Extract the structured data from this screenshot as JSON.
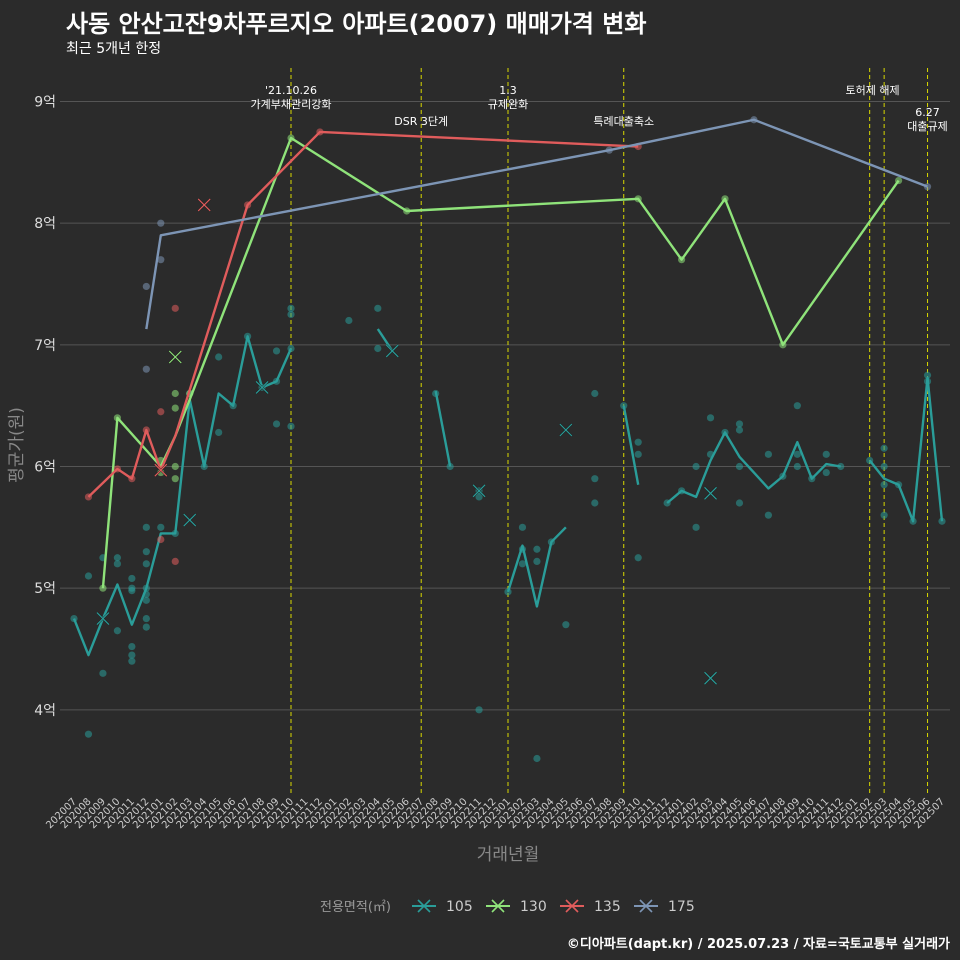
{
  "title": "사동 안산고잔9차푸르지오 아파트(2007) 매매가격 변화",
  "subtitle": "최근 5개년 한정",
  "caption": "©디아파트(dapt.kr) / 2025.07.23 / 자료=국토교통부 실거래가",
  "chart_data": {
    "type": "line",
    "xlabel": "거래년월",
    "ylabel": "평균가(원)",
    "ylim": [
      3.3,
      9.3
    ],
    "y_ticks": [
      {
        "value": 4,
        "label": "4억"
      },
      {
        "value": 5,
        "label": "5억"
      },
      {
        "value": 6,
        "label": "6억"
      },
      {
        "value": 7,
        "label": "7억"
      },
      {
        "value": 8,
        "label": "8억"
      },
      {
        "value": 9,
        "label": "9억"
      }
    ],
    "categories": [
      "202007",
      "202008",
      "202009",
      "202010",
      "202011",
      "202012",
      "202101",
      "202102",
      "202103",
      "202104",
      "202105",
      "202106",
      "202107",
      "202108",
      "202109",
      "202110",
      "202111",
      "202112",
      "202201",
      "202202",
      "202203",
      "202204",
      "202205",
      "202206",
      "202207",
      "202208",
      "202209",
      "202210",
      "202211",
      "202212",
      "202301",
      "202302",
      "202303",
      "202304",
      "202305",
      "202306",
      "202307",
      "202308",
      "202309",
      "202310",
      "202311",
      "202312",
      "202401",
      "202402",
      "202403",
      "202404",
      "202405",
      "202406",
      "202407",
      "202408",
      "202409",
      "202410",
      "202411",
      "202412",
      "202501",
      "202502",
      "202503",
      "202504",
      "202505",
      "202506",
      "202507"
    ],
    "legend_title": "전용면적(㎡)",
    "legend_position": "bottom",
    "series": [
      {
        "name": "105",
        "color": "#2a9d99",
        "line": [
          [
            "202007",
            4.75
          ],
          [
            "202008",
            4.45
          ],
          [
            "202009",
            4.75
          ],
          [
            "202010",
            5.03
          ],
          [
            "202011",
            4.7
          ],
          [
            "202012",
            5.0
          ],
          [
            "202101",
            5.45
          ],
          [
            "202102",
            5.45
          ],
          [
            "202103",
            6.55
          ],
          [
            "202104",
            6.0
          ],
          [
            "202105",
            6.6
          ],
          [
            "202106",
            6.5
          ],
          [
            "202107",
            7.07
          ],
          [
            "202108",
            6.65
          ],
          [
            "202109",
            6.7
          ],
          [
            "202110",
            6.97
          ],
          null,
          [
            "202204",
            7.13
          ],
          [
            "202205",
            6.95
          ],
          null,
          [
            "202208",
            6.62
          ],
          [
            "202209",
            6.0
          ],
          null,
          [
            "202301",
            4.97
          ],
          [
            "202302",
            5.35
          ],
          [
            "202303",
            4.85
          ],
          [
            "202304",
            5.38
          ],
          [
            "202305",
            5.5
          ],
          null,
          [
            "202309",
            6.5
          ],
          [
            "202310",
            5.85
          ],
          null,
          [
            "202312",
            5.7
          ],
          [
            "202401",
            5.8
          ],
          [
            "202402",
            5.75
          ],
          [
            "202403",
            6.05
          ],
          [
            "202404",
            6.28
          ],
          [
            "202405",
            6.08
          ],
          [
            "202406",
            5.95
          ],
          [
            "202407",
            5.82
          ],
          [
            "202408",
            5.92
          ],
          [
            "202409",
            6.2
          ],
          [
            "202410",
            5.9
          ],
          [
            "202411",
            6.02
          ],
          [
            "202412",
            6.0
          ],
          null,
          [
            "202502",
            6.05
          ],
          [
            "202503",
            5.9
          ],
          [
            "202504",
            5.85
          ],
          [
            "202505",
            5.55
          ],
          [
            "202506",
            6.73
          ],
          [
            "202507",
            5.55
          ]
        ],
        "points": [
          [
            "202007",
            4.75
          ],
          [
            "202008",
            5.1
          ],
          [
            "202008",
            3.8
          ],
          [
            "202009",
            5.25
          ],
          [
            "202009",
            4.3
          ],
          [
            "202010",
            5.25
          ],
          [
            "202010",
            5.2
          ],
          [
            "202010",
            4.65
          ],
          [
            "202011",
            5.08
          ],
          [
            "202011",
            5.0
          ],
          [
            "202011",
            4.98
          ],
          [
            "202011",
            4.52
          ],
          [
            "202011",
            4.45
          ],
          [
            "202011",
            4.4
          ],
          [
            "202012",
            5.5
          ],
          [
            "202012",
            5.3
          ],
          [
            "202012",
            5.2
          ],
          [
            "202012",
            5.0
          ],
          [
            "202012",
            4.95
          ],
          [
            "202012",
            4.9
          ],
          [
            "202012",
            4.75
          ],
          [
            "202012",
            4.68
          ],
          [
            "202101",
            5.5
          ],
          [
            "202102",
            5.45
          ],
          [
            "202103",
            6.6
          ],
          [
            "202104",
            6.0
          ],
          [
            "202105",
            6.9
          ],
          [
            "202105",
            6.28
          ],
          [
            "202106",
            6.5
          ],
          [
            "202107",
            7.07
          ],
          [
            "202108",
            6.65
          ],
          [
            "202109",
            6.95
          ],
          [
            "202109",
            6.7
          ],
          [
            "202109",
            6.35
          ],
          [
            "202110",
            7.3
          ],
          [
            "202110",
            7.25
          ],
          [
            "202110",
            6.97
          ],
          [
            "202110",
            6.33
          ],
          [
            "202202",
            7.2
          ],
          [
            "202204",
            7.3
          ],
          [
            "202204",
            6.97
          ],
          [
            "202208",
            6.6
          ],
          [
            "202209",
            6.0
          ],
          [
            "202211",
            5.8
          ],
          [
            "202211",
            5.75
          ],
          [
            "202211",
            4.0
          ],
          [
            "202301",
            4.97
          ],
          [
            "202302",
            5.5
          ],
          [
            "202302",
            5.32
          ],
          [
            "202302",
            5.2
          ],
          [
            "202303",
            5.32
          ],
          [
            "202303",
            5.22
          ],
          [
            "202303",
            3.6
          ],
          [
            "202304",
            5.38
          ],
          [
            "202305",
            4.7
          ],
          [
            "202307",
            6.6
          ],
          [
            "202307",
            5.9
          ],
          [
            "202307",
            5.7
          ],
          [
            "202309",
            6.5
          ],
          [
            "202310",
            6.2
          ],
          [
            "202310",
            6.1
          ],
          [
            "202310",
            5.25
          ],
          [
            "202312",
            5.7
          ],
          [
            "202401",
            5.8
          ],
          [
            "202402",
            6.0
          ],
          [
            "202402",
            5.5
          ],
          [
            "202403",
            6.4
          ],
          [
            "202403",
            6.1
          ],
          [
            "202404",
            6.28
          ],
          [
            "202405",
            6.35
          ],
          [
            "202405",
            6.3
          ],
          [
            "202405",
            6.0
          ],
          [
            "202405",
            5.7
          ],
          [
            "202407",
            6.1
          ],
          [
            "202407",
            5.6
          ],
          [
            "202408",
            5.92
          ],
          [
            "202409",
            6.5
          ],
          [
            "202409",
            6.1
          ],
          [
            "202409",
            6.0
          ],
          [
            "202410",
            5.9
          ],
          [
            "202411",
            6.1
          ],
          [
            "202411",
            5.95
          ],
          [
            "202412",
            6.0
          ],
          [
            "202502",
            6.05
          ],
          [
            "202503",
            6.15
          ],
          [
            "202503",
            6.0
          ],
          [
            "202503",
            5.85
          ],
          [
            "202503",
            5.6
          ],
          [
            "202504",
            5.85
          ],
          [
            "202505",
            5.55
          ],
          [
            "202506",
            6.75
          ],
          [
            "202506",
            6.7
          ],
          [
            "202507",
            5.55
          ]
        ],
        "crosses": [
          [
            "202009",
            4.75
          ],
          [
            "202103",
            5.56
          ],
          [
            "202108",
            6.65
          ],
          [
            "202205",
            6.95
          ],
          [
            "202211",
            5.8
          ],
          [
            "202305",
            6.3
          ],
          [
            "202403",
            5.78
          ],
          [
            "202403",
            4.26
          ]
        ]
      },
      {
        "name": "130",
        "color": "#8fe37a",
        "line": [
          [
            "202009",
            5.0
          ],
          [
            "202010",
            6.4
          ],
          [
            "202101",
            6.0
          ],
          [
            "202102",
            6.25
          ],
          [
            "202103",
            6.55
          ],
          [
            "202110",
            8.7
          ],
          [
            "202206",
            8.1
          ],
          [
            "202310",
            8.2
          ],
          [
            "202401",
            7.7
          ],
          [
            "202404",
            8.2
          ],
          [
            "202408",
            7.0
          ],
          [
            "202504",
            8.35
          ]
        ],
        "points": [
          [
            "202009",
            5.0
          ],
          [
            "202010",
            6.4
          ],
          [
            "202101",
            6.05
          ],
          [
            "202101",
            5.95
          ],
          [
            "202102",
            6.6
          ],
          [
            "202102",
            6.48
          ],
          [
            "202102",
            6.0
          ],
          [
            "202102",
            5.9
          ],
          [
            "202103",
            6.6
          ],
          [
            "202110",
            8.7
          ],
          [
            "202206",
            8.1
          ],
          [
            "202310",
            8.2
          ],
          [
            "202401",
            7.7
          ],
          [
            "202404",
            8.2
          ],
          [
            "202408",
            7.0
          ],
          [
            "202504",
            8.35
          ]
        ],
        "crosses": [
          [
            "202102",
            6.9
          ]
        ]
      },
      {
        "name": "135",
        "color": "#e05c5c",
        "line": [
          [
            "202008",
            5.75
          ],
          [
            "202010",
            5.98
          ],
          [
            "202011",
            5.9
          ],
          [
            "202012",
            6.3
          ],
          [
            "202101",
            5.97
          ],
          [
            "202102",
            6.25
          ],
          [
            "202107",
            8.15
          ],
          [
            "202112",
            8.75
          ],
          [
            "202310",
            8.63
          ]
        ],
        "points": [
          [
            "202008",
            5.75
          ],
          [
            "202010",
            5.98
          ],
          [
            "202011",
            5.9
          ],
          [
            "202012",
            6.3
          ],
          [
            "202101",
            6.45
          ],
          [
            "202101",
            5.4
          ],
          [
            "202102",
            7.3
          ],
          [
            "202102",
            5.22
          ],
          [
            "202107",
            8.15
          ],
          [
            "202112",
            8.75
          ],
          [
            "202310",
            8.63
          ]
        ],
        "crosses": [
          [
            "202101",
            5.97
          ],
          [
            "202104",
            8.15
          ]
        ]
      },
      {
        "name": "175",
        "color": "#7d95b5",
        "line": [
          [
            "202012",
            7.13
          ],
          [
            "202101",
            7.9
          ],
          [
            "202308",
            8.6
          ],
          [
            "202406",
            8.85
          ],
          [
            "202506",
            8.3
          ]
        ],
        "points": [
          [
            "202012",
            7.48
          ],
          [
            "202012",
            6.8
          ],
          [
            "202101",
            8.0
          ],
          [
            "202101",
            7.7
          ],
          [
            "202308",
            8.6
          ],
          [
            "202406",
            8.85
          ],
          [
            "202506",
            8.3
          ]
        ],
        "crosses": []
      }
    ],
    "annotations": [
      {
        "x": "202110",
        "lines": [
          "'21.10.26",
          "가계부채관리강화"
        ],
        "level": 1
      },
      {
        "x": "202207",
        "lines": [
          "DSR 3단계"
        ],
        "level": 2
      },
      {
        "x": "202301",
        "lines": [
          "1.3",
          "규제완화"
        ],
        "level": 1
      },
      {
        "x": "202309",
        "lines": [
          "특례대출축소"
        ],
        "level": 2
      },
      {
        "x": "202502",
        "lines": [
          "토허제 해제"
        ],
        "level": 1,
        "anchor": "end"
      },
      {
        "x": "202503",
        "lines": [],
        "level": 1
      },
      {
        "x": "202506",
        "lines": [
          "6.27",
          "대출규제"
        ],
        "level": 3
      }
    ]
  }
}
